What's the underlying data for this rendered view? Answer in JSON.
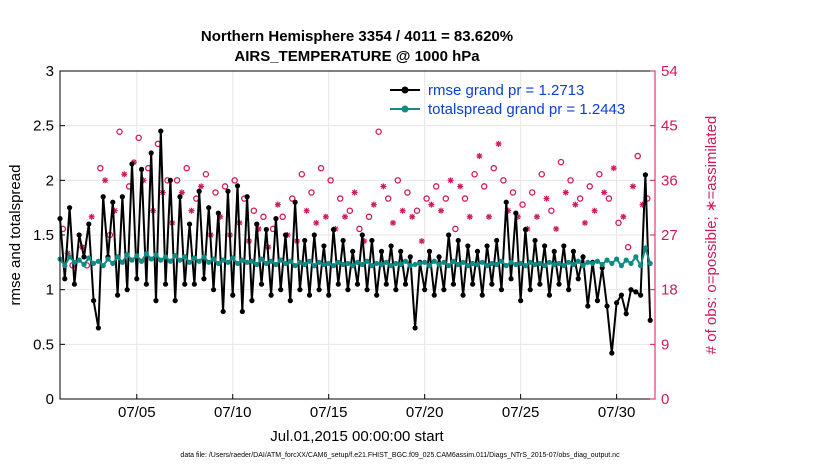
{
  "chart_data": {
    "type": "line",
    "title_line1": "Northern Hemisphere 3354 / 4011 = 83.620%",
    "title_line2": "AIRS_TEMPERATURE @ 1000 hPa",
    "xlabel": "Jul.01,2015 00:00:00 start",
    "ylabel_left": "rmse and totalspread",
    "ylabel_right": "# of obs: o=possible; ∗=assimilated",
    "xlim": [
      1,
      32
    ],
    "ylim_left": [
      0,
      3
    ],
    "ylim_right": [
      0,
      54
    ],
    "x_ticks": [
      5,
      10,
      15,
      20,
      25,
      30
    ],
    "x_tick_labels": [
      "07/05",
      "07/10",
      "07/15",
      "07/20",
      "07/25",
      "07/30"
    ],
    "y_ticks_left": [
      "0",
      "0.5",
      "1",
      "1.5",
      "2",
      "2.5",
      "3"
    ],
    "y_ticks_right": [
      "0",
      "9",
      "18",
      "27",
      "36",
      "45",
      "54"
    ],
    "series": [
      {
        "name": "rmse grand pr = 1.2713",
        "color": "#000000",
        "marker": "filled-circle",
        "x": [
          1.0,
          1.25,
          1.5,
          1.75,
          2.0,
          2.25,
          2.5,
          2.75,
          3.0,
          3.25,
          3.5,
          3.75,
          4.0,
          4.25,
          4.5,
          4.75,
          5.0,
          5.25,
          5.5,
          5.75,
          6.0,
          6.25,
          6.5,
          6.75,
          7.0,
          7.25,
          7.5,
          7.75,
          8.0,
          8.25,
          8.5,
          8.75,
          9.0,
          9.25,
          9.5,
          9.75,
          10.0,
          10.25,
          10.5,
          10.75,
          11.0,
          11.25,
          11.5,
          11.75,
          12.0,
          12.25,
          12.5,
          12.75,
          13.0,
          13.25,
          13.5,
          13.75,
          14.0,
          14.25,
          14.5,
          14.75,
          15.0,
          15.25,
          15.5,
          15.75,
          16.0,
          16.25,
          16.5,
          16.75,
          17.0,
          17.25,
          17.5,
          17.75,
          18.0,
          18.25,
          18.5,
          18.75,
          19.0,
          19.25,
          19.5,
          19.75,
          20.0,
          20.25,
          20.5,
          20.75,
          21.0,
          21.25,
          21.5,
          21.75,
          22.0,
          22.25,
          22.5,
          22.75,
          23.0,
          23.25,
          23.5,
          23.75,
          24.0,
          24.25,
          24.5,
          24.75,
          25.0,
          25.25,
          25.5,
          25.75,
          26.0,
          26.25,
          26.5,
          26.75,
          27.0,
          27.25,
          27.5,
          27.75,
          28.0,
          28.25,
          28.5,
          28.75,
          29.0,
          29.25,
          29.5,
          29.75,
          30.0,
          30.25,
          30.5,
          30.75,
          31.0,
          31.25,
          31.5,
          31.75
        ],
        "y": [
          1.65,
          1.1,
          1.75,
          1.05,
          1.5,
          1.3,
          1.6,
          0.9,
          0.65,
          1.85,
          1.3,
          1.8,
          0.95,
          1.85,
          1.0,
          2.15,
          1.1,
          2.1,
          1.05,
          2.25,
          0.9,
          2.45,
          1.05,
          2.0,
          0.9,
          1.85,
          1.05,
          1.6,
          1.05,
          1.9,
          1.1,
          1.75,
          1.0,
          1.7,
          0.8,
          1.9,
          0.95,
          1.95,
          0.8,
          1.85,
          0.9,
          1.6,
          1.05,
          1.55,
          0.95,
          1.65,
          1.0,
          1.5,
          0.9,
          1.8,
          1.0,
          1.45,
          0.95,
          1.5,
          1.0,
          1.4,
          0.95,
          1.55,
          1.05,
          1.45,
          1.0,
          1.35,
          1.05,
          1.5,
          1.0,
          1.45,
          0.95,
          1.35,
          1.05,
          1.4,
          1.0,
          1.35,
          1.05,
          1.3,
          0.65,
          1.25,
          1.0,
          1.35,
          0.95,
          1.3,
          1.0,
          1.5,
          1.05,
          1.45,
          0.95,
          1.4,
          1.05,
          1.35,
          0.95,
          1.4,
          1.05,
          1.45,
          1.0,
          1.8,
          1.1,
          1.7,
          0.9,
          1.55,
          1.0,
          1.45,
          1.05,
          1.4,
          0.95,
          1.35,
          1.05,
          1.4,
          1.0,
          1.35,
          1.1,
          1.3,
          0.85,
          1.25,
          0.9,
          1.2,
          0.85,
          0.42,
          0.88,
          0.95,
          0.78,
          1.0,
          0.98,
          0.95,
          2.05,
          0.72
        ]
      },
      {
        "name": "totalspread grand pr = 1.2443",
        "color": "#0f8a84",
        "marker": "filled-circle",
        "x": [
          1.0,
          1.25,
          1.5,
          1.75,
          2.0,
          2.25,
          2.5,
          2.75,
          3.0,
          3.25,
          3.5,
          3.75,
          4.0,
          4.25,
          4.5,
          4.75,
          5.0,
          5.25,
          5.5,
          5.75,
          6.0,
          6.25,
          6.5,
          6.75,
          7.0,
          7.25,
          7.5,
          7.75,
          8.0,
          8.25,
          8.5,
          8.75,
          9.0,
          9.25,
          9.5,
          9.75,
          10.0,
          10.25,
          10.5,
          10.75,
          11.0,
          11.25,
          11.5,
          11.75,
          12.0,
          12.25,
          12.5,
          12.75,
          13.0,
          13.25,
          13.5,
          13.75,
          14.0,
          14.25,
          14.5,
          14.75,
          15.0,
          15.25,
          15.5,
          15.75,
          16.0,
          16.25,
          16.5,
          16.75,
          17.0,
          17.25,
          17.5,
          17.75,
          18.0,
          18.25,
          18.5,
          18.75,
          19.0,
          19.25,
          19.5,
          19.75,
          20.0,
          20.25,
          20.5,
          20.75,
          21.0,
          21.25,
          21.5,
          21.75,
          22.0,
          22.25,
          22.5,
          22.75,
          23.0,
          23.25,
          23.5,
          23.75,
          24.0,
          24.25,
          24.5,
          24.75,
          25.0,
          25.25,
          25.5,
          25.75,
          26.0,
          26.25,
          26.5,
          26.75,
          27.0,
          27.25,
          27.5,
          27.75,
          28.0,
          28.25,
          28.5,
          28.75,
          29.0,
          29.25,
          29.5,
          29.75,
          30.0,
          30.25,
          30.5,
          30.75,
          31.0,
          31.25,
          31.5,
          31.75
        ],
        "y": [
          1.28,
          1.22,
          1.3,
          1.25,
          1.27,
          1.23,
          1.29,
          1.24,
          1.26,
          1.22,
          1.28,
          1.24,
          1.3,
          1.25,
          1.32,
          1.27,
          1.31,
          1.26,
          1.33,
          1.28,
          1.32,
          1.27,
          1.3,
          1.26,
          1.31,
          1.27,
          1.3,
          1.25,
          1.29,
          1.26,
          1.3,
          1.25,
          1.28,
          1.24,
          1.27,
          1.25,
          1.29,
          1.24,
          1.27,
          1.25,
          1.26,
          1.23,
          1.28,
          1.24,
          1.26,
          1.23,
          1.27,
          1.24,
          1.26,
          1.22,
          1.25,
          1.23,
          1.26,
          1.22,
          1.25,
          1.23,
          1.24,
          1.22,
          1.25,
          1.23,
          1.24,
          1.22,
          1.25,
          1.23,
          1.26,
          1.22,
          1.24,
          1.23,
          1.25,
          1.22,
          1.24,
          1.23,
          1.26,
          1.22,
          1.23,
          1.24,
          1.25,
          1.22,
          1.26,
          1.23,
          1.25,
          1.22,
          1.26,
          1.23,
          1.25,
          1.22,
          1.24,
          1.23,
          1.25,
          1.22,
          1.24,
          1.23,
          1.26,
          1.22,
          1.25,
          1.23,
          1.24,
          1.22,
          1.25,
          1.23,
          1.24,
          1.22,
          1.25,
          1.23,
          1.24,
          1.22,
          1.25,
          1.23,
          1.26,
          1.22,
          1.25,
          1.24,
          1.26,
          1.23,
          1.27,
          1.24,
          1.28,
          1.22,
          1.27,
          1.24,
          1.3,
          1.22,
          1.38,
          1.24
        ]
      }
    ],
    "obs_possible": {
      "marker": "open-circle",
      "color": "#d0195e",
      "x": [
        1.15,
        1.4,
        1.65,
        2.15,
        2.4,
        2.65,
        3.1,
        3.35,
        3.6,
        3.85,
        4.1,
        4.35,
        4.6,
        4.85,
        5.1,
        5.35,
        5.6,
        5.85,
        6.1,
        6.35,
        6.6,
        6.85,
        7.1,
        7.35,
        7.6,
        7.85,
        8.1,
        8.35,
        8.6,
        8.85,
        9.1,
        9.35,
        9.6,
        9.85,
        10.1,
        10.35,
        10.6,
        10.85,
        11.1,
        11.35,
        11.6,
        11.85,
        12.1,
        12.35,
        12.6,
        12.85,
        13.1,
        13.35,
        13.6,
        13.85,
        14.1,
        14.35,
        14.6,
        14.85,
        15.1,
        15.35,
        15.6,
        15.85,
        16.1,
        16.35,
        16.6,
        16.85,
        17.1,
        17.35,
        17.6,
        17.85,
        18.1,
        18.35,
        18.6,
        18.85,
        19.1,
        19.35,
        19.6,
        19.85,
        20.1,
        20.35,
        20.6,
        20.85,
        21.1,
        21.35,
        21.6,
        21.85,
        22.1,
        22.35,
        22.6,
        22.85,
        23.1,
        23.35,
        23.6,
        23.85,
        24.1,
        24.35,
        24.6,
        24.85,
        25.1,
        25.35,
        25.6,
        25.85,
        26.1,
        26.35,
        26.6,
        26.85,
        27.1,
        27.35,
        27.6,
        27.85,
        28.1,
        28.35,
        28.6,
        28.85,
        29.1,
        29.35,
        29.6,
        29.85,
        30.1,
        30.35,
        30.6,
        30.85,
        31.1,
        31.35,
        31.6
      ],
      "y": [
        28,
        24,
        22,
        25,
        22,
        30,
        38,
        36,
        27,
        31,
        44,
        37,
        35,
        39,
        43,
        36,
        38,
        31,
        42,
        34,
        36,
        29,
        36,
        34,
        38,
        31,
        33,
        35,
        37,
        27,
        34,
        30,
        35,
        27,
        36,
        29,
        33,
        26,
        31,
        28,
        30,
        25,
        28,
        32,
        30,
        27,
        33,
        26,
        37,
        31,
        34,
        29,
        38,
        30,
        36,
        28,
        33,
        30,
        31,
        34,
        28,
        26,
        30,
        32,
        44,
        35,
        33,
        29,
        36,
        31,
        34,
        30,
        31,
        26,
        33,
        32,
        35,
        31,
        33,
        36,
        28,
        35,
        33,
        30,
        37,
        40,
        35,
        30,
        38,
        42,
        36,
        31,
        34,
        30,
        32,
        28,
        34,
        30,
        37,
        33,
        31,
        28,
        39,
        34,
        36,
        32,
        33,
        29,
        35,
        31,
        37,
        34,
        33,
        38,
        29,
        30,
        25,
        35,
        40,
        32,
        33
      ],
      "label_in_legend": false
    }
  },
  "legend": {
    "entries": [
      "rmse grand pr = 1.2713",
      "totalspread grand pr = 1.2443"
    ],
    "placement": "top-right"
  },
  "footer": "data file: /Users/raeder/DAI/ATM_forcXX/CAM6_setup/f.e21.FHIST_BGC.f09_025.CAM6assim.011/Diags_NTrS_2015-07/obs_diag_output.nc",
  "colors": {
    "rmse": "#000000",
    "spread": "#0f8a84",
    "obs": "#d0195e",
    "legend_text": "#0a3fd1",
    "grid": "#e6e6e6"
  }
}
